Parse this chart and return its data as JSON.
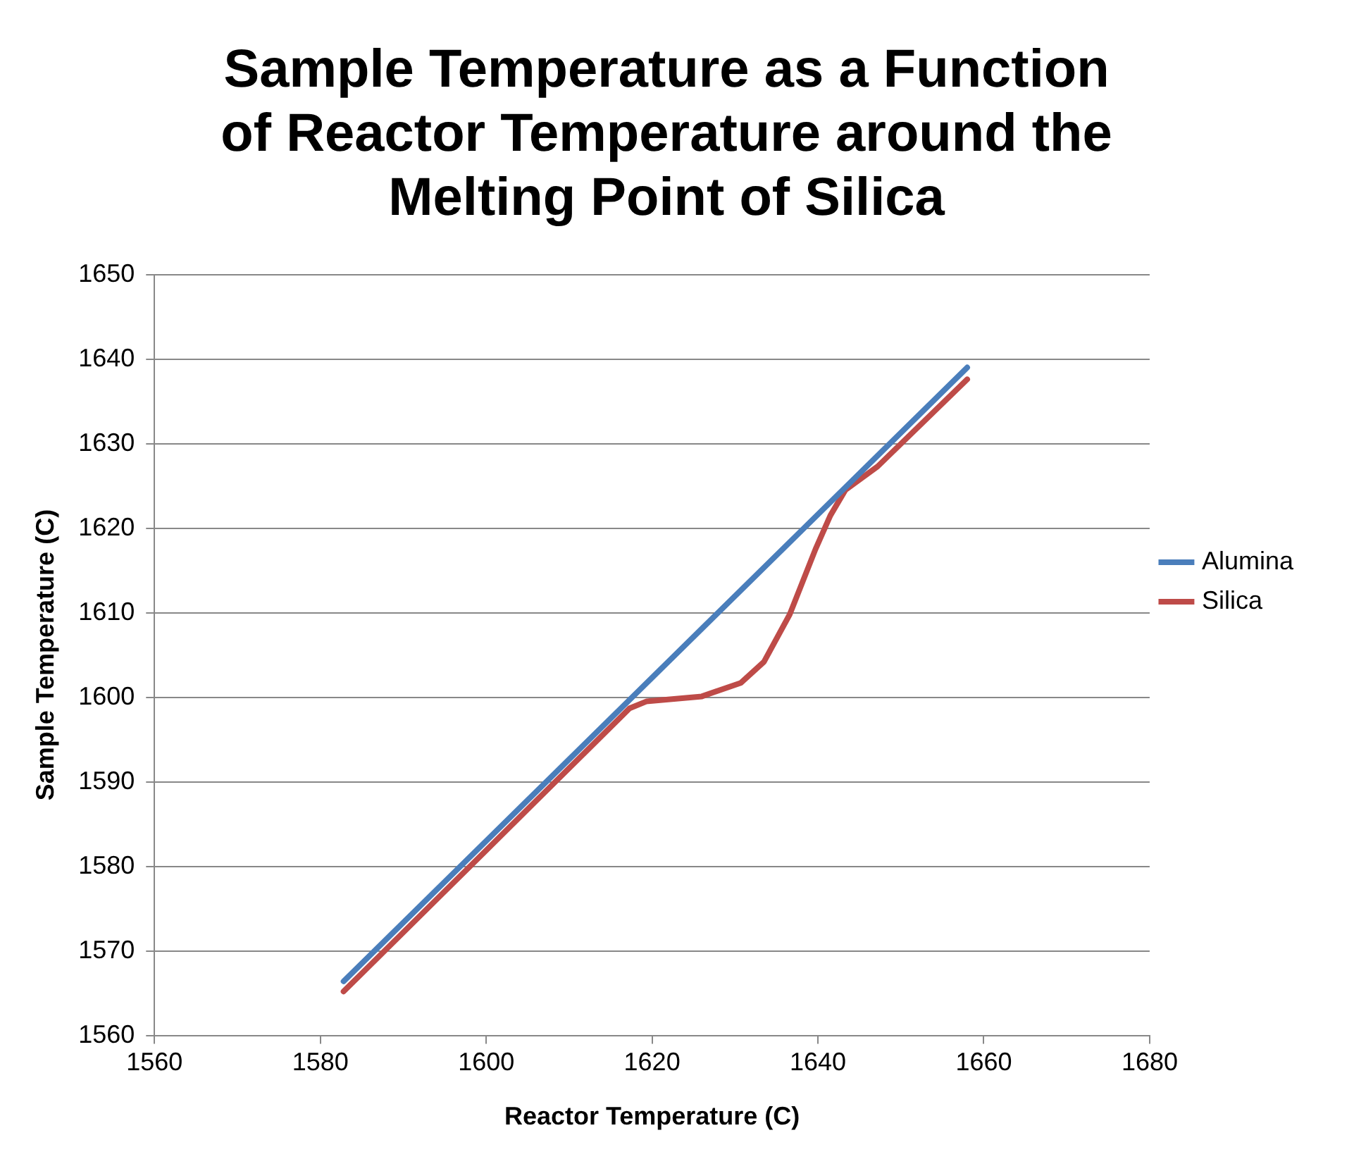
{
  "chart_data": {
    "type": "line",
    "title": "Sample Temperature as a Function of Reactor Temperature around the Melting Point of Silica",
    "xlabel": "Reactor Temperature (C)",
    "ylabel": "Sample Temperature (C)",
    "series": [
      {
        "name": "Alumina",
        "color": "#4a7ebb",
        "x": [
          1582.8,
          1658.0
        ],
        "values": [
          1566.4,
          1639.0
        ]
      },
      {
        "name": "Silica",
        "color": "#be4b48",
        "x": [
          1582.8,
          1600,
          1614,
          1617.3,
          1619.3,
          1626,
          1630.7,
          1633.5,
          1636.6,
          1639.7,
          1641.5,
          1643.3,
          1647.2,
          1658
        ],
        "values": [
          1565.2,
          1581.9,
          1595.5,
          1598.7,
          1599.5,
          1600.1,
          1601.7,
          1604.2,
          1609.8,
          1617.5,
          1621.5,
          1624.5,
          1627.3,
          1637.6
        ]
      }
    ],
    "xlim": [
      1560,
      1680
    ],
    "xticks": [
      1560,
      1580,
      1600,
      1620,
      1640,
      1660,
      1680
    ],
    "ylim": [
      1560,
      1650
    ],
    "yticks": [
      1560,
      1570,
      1580,
      1590,
      1600,
      1610,
      1620,
      1630,
      1640,
      1650
    ],
    "grid": "y",
    "legend": "right",
    "marker": "none"
  }
}
